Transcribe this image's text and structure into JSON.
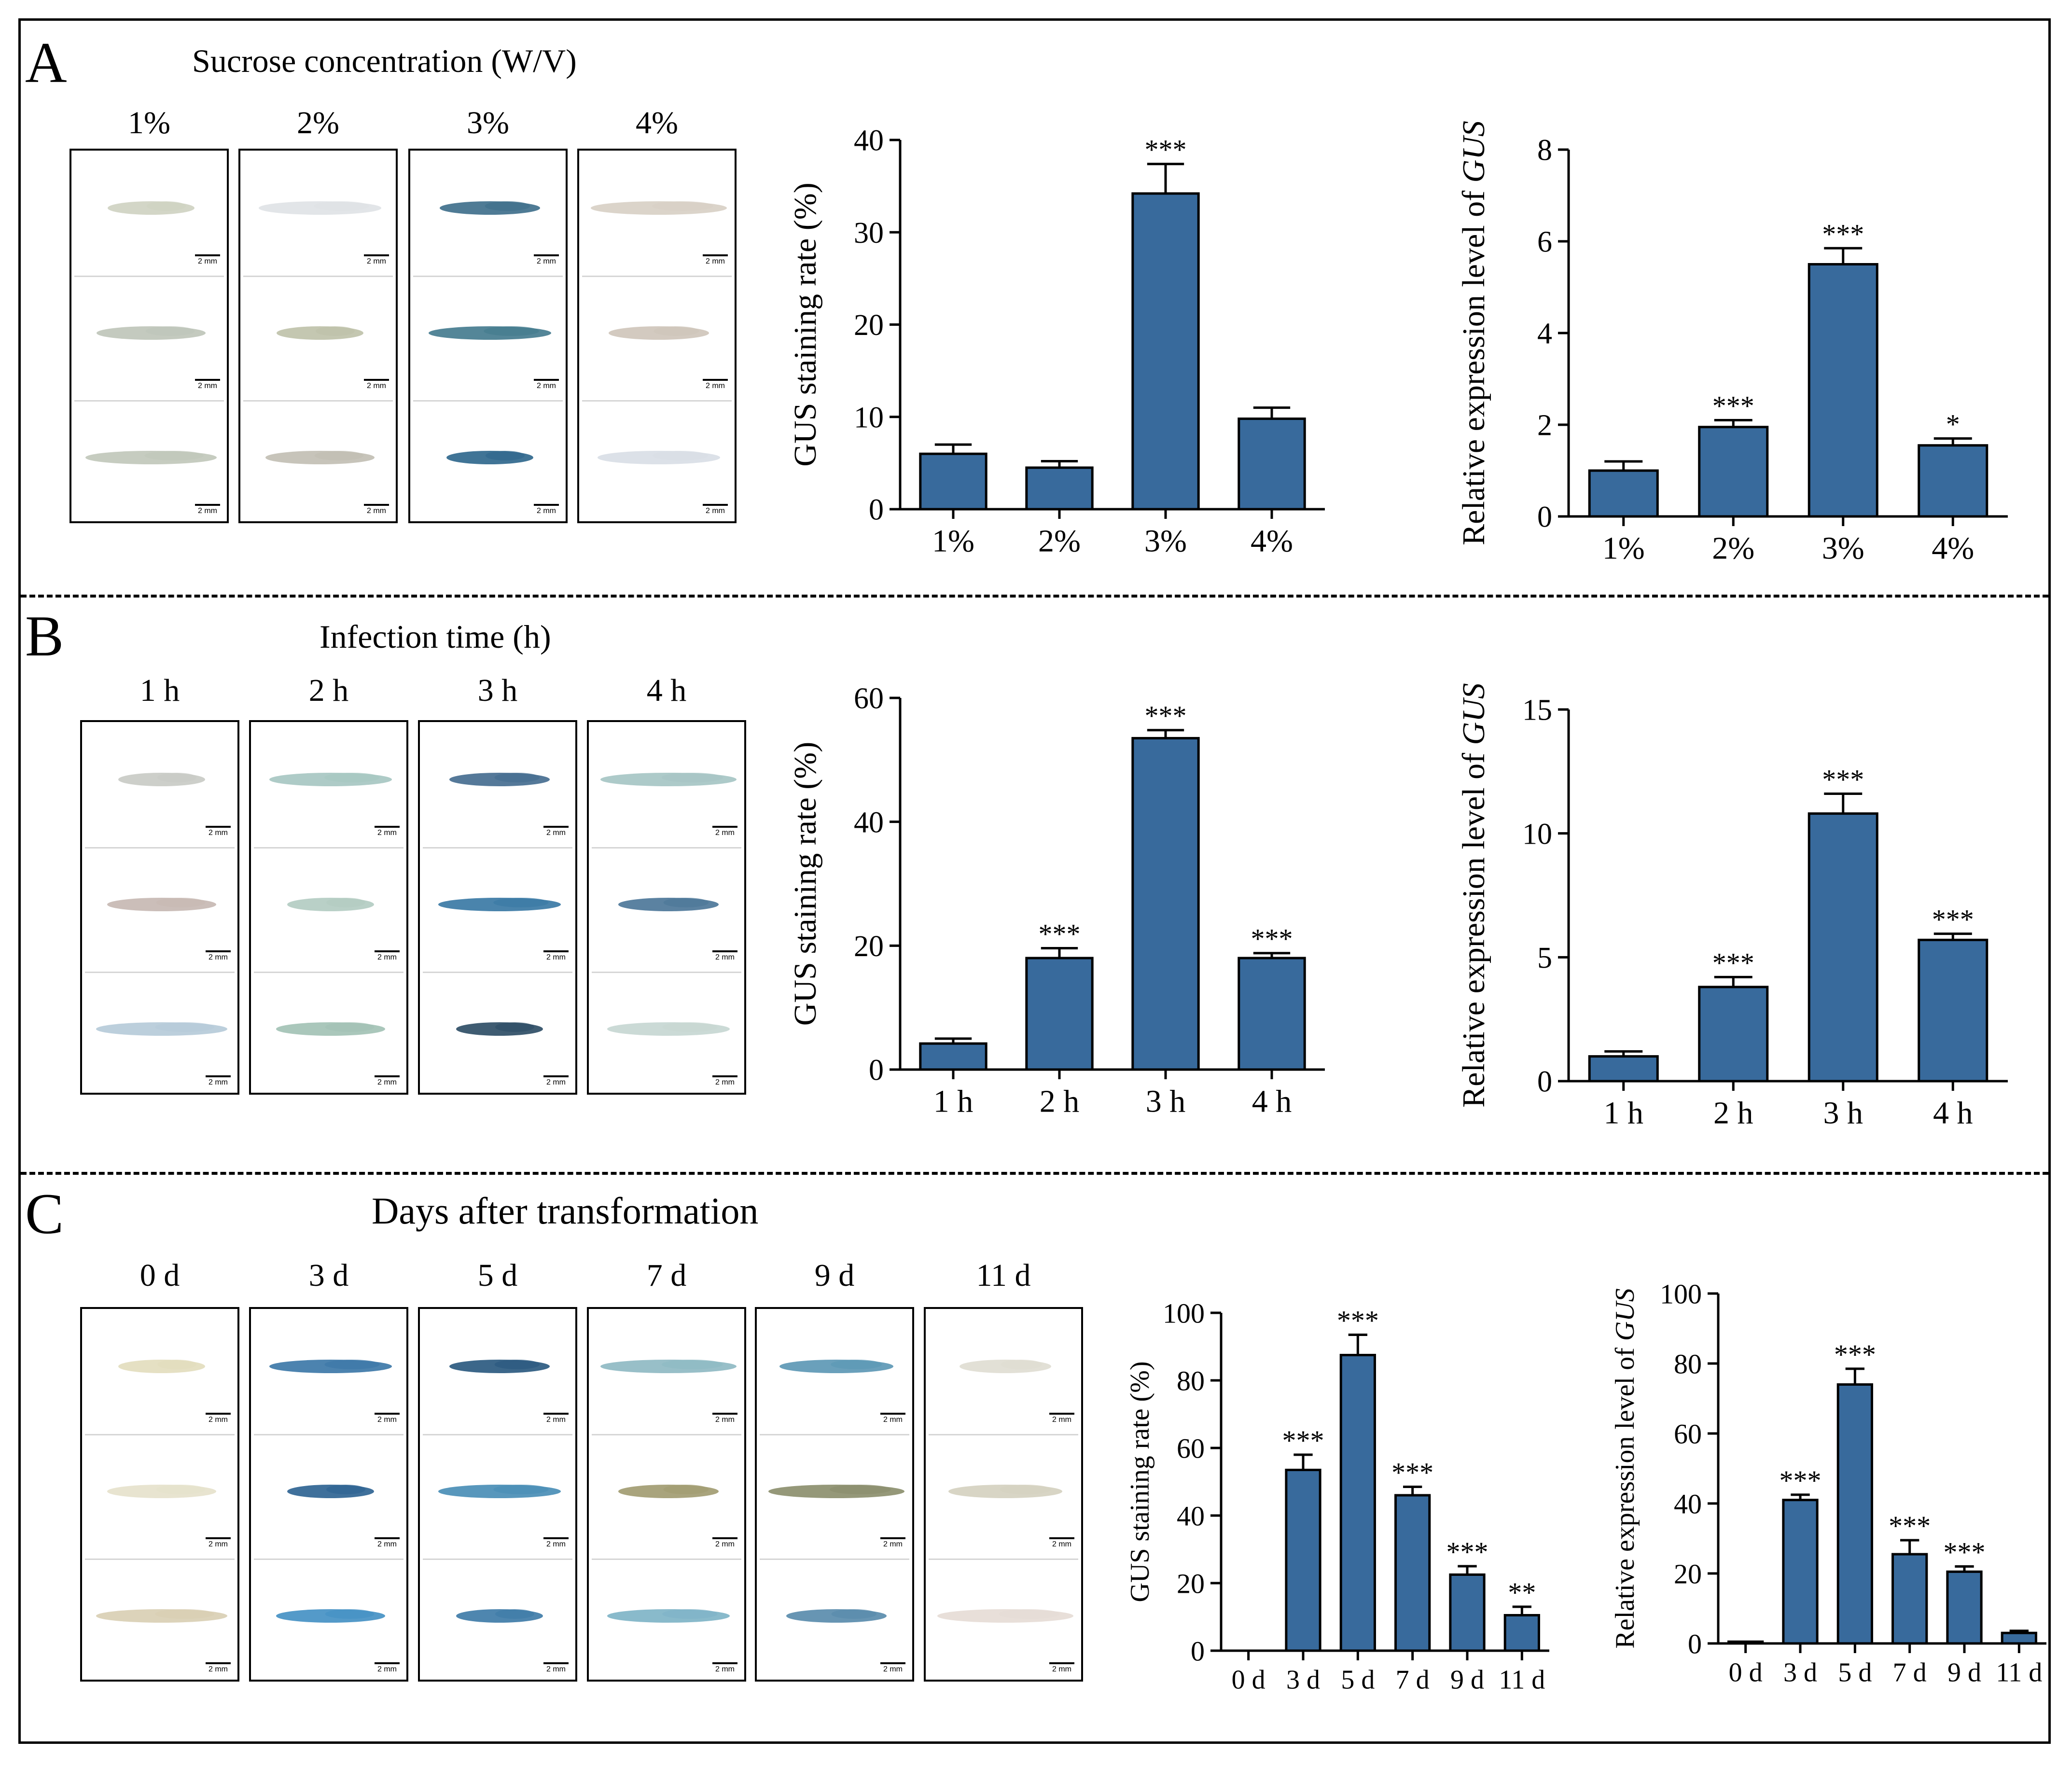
{
  "colors": {
    "bar": "#386a9c",
    "bar_edge": "#000000",
    "photo_border": "#000000"
  },
  "scale_bar_label": "2 mm",
  "panels": [
    {
      "letter": "A",
      "heading": "Sucrose concentration (W/V)",
      "photo_labels": [
        "1%",
        "2%",
        "3%",
        "4%"
      ],
      "tissue_colors": [
        [
          "#cfd3c2",
          "#bfc6ba",
          "#c1c8bb"
        ],
        [
          "#dfe3e6",
          "#bfc2aa",
          "#c2bfb4"
        ],
        [
          "#40708c",
          "#457c8f",
          "#30688d"
        ],
        [
          "#d8d0c6",
          "#cfc6bb",
          "#d9dee6"
        ]
      ]
    },
    {
      "letter": "B",
      "heading": "Infection time (h)",
      "photo_labels": [
        "1 h",
        "2 h",
        "3 h",
        "4 h"
      ],
      "tissue_colors": [
        [
          "#c9cbc6",
          "#c7b9b3",
          "#b6cbd9"
        ],
        [
          "#a7c7c2",
          "#b3ccc2",
          "#a3c2b5"
        ],
        [
          "#466e90",
          "#3b7aa5",
          "#2f4e66"
        ],
        [
          "#a6c5c4",
          "#4d7799",
          "#c7d7d2"
        ]
      ]
    },
    {
      "letter": "C",
      "heading": "Days after transformation",
      "photo_labels": [
        "0 d",
        "3 d",
        "5 d",
        "7 d",
        "9 d",
        "11 d"
      ],
      "tissue_colors": [
        [
          "#e3ddbe",
          "#e6e2cc",
          "#d9cfb4"
        ],
        [
          "#3d78a8",
          "#2f6493",
          "#4591c4"
        ],
        [
          "#2b5a80",
          "#4a8eb6",
          "#3f7ca8"
        ],
        [
          "#8fbac3",
          "#a29c72",
          "#7fb4c7"
        ],
        [
          "#5d98b5",
          "#8c8f6e",
          "#5a8cad"
        ],
        [
          "#dfddd2",
          "#d5d1c0",
          "#e6dcd6"
        ]
      ]
    }
  ],
  "chart_data": [
    {
      "type": "bar",
      "panel": "A",
      "title": "",
      "xlabel": "",
      "ylabel": "GUS staining rate (%)",
      "categories": [
        "1%",
        "2%",
        "3%",
        "4%"
      ],
      "values": [
        6,
        4.5,
        34.2,
        9.8
      ],
      "errors": [
        1,
        0.7,
        3.2,
        1.2
      ],
      "significance": [
        "",
        "",
        "***",
        ""
      ],
      "ylim": [
        0,
        40
      ],
      "yticks": [
        0,
        10,
        20,
        30,
        40
      ]
    },
    {
      "type": "bar",
      "panel": "A",
      "title": "",
      "xlabel": "",
      "ylabel": "Relative expression level of ",
      "ylabel_gene": "GUS",
      "categories": [
        "1%",
        "2%",
        "3%",
        "4%"
      ],
      "values": [
        1,
        1.95,
        5.5,
        1.55
      ],
      "errors": [
        0.2,
        0.15,
        0.35,
        0.15
      ],
      "significance": [
        "",
        "***",
        "***",
        "*"
      ],
      "ylim": [
        0,
        8
      ],
      "yticks": [
        0,
        2,
        4,
        6,
        8
      ]
    },
    {
      "type": "bar",
      "panel": "B",
      "title": "",
      "xlabel": "",
      "ylabel": "GUS staining rate (%)",
      "categories": [
        "1 h",
        "2 h",
        "3 h",
        "4 h"
      ],
      "values": [
        4.2,
        18,
        53.5,
        18
      ],
      "errors": [
        0.8,
        1.6,
        1.3,
        0.8
      ],
      "significance": [
        "",
        "***",
        "***",
        "***"
      ],
      "ylim": [
        0,
        60
      ],
      "yticks": [
        0,
        20,
        40,
        60
      ]
    },
    {
      "type": "bar",
      "panel": "B",
      "title": "",
      "xlabel": "",
      "ylabel": "Relative expression level of ",
      "ylabel_gene": "GUS",
      "categories": [
        "1 h",
        "2 h",
        "3 h",
        "4 h"
      ],
      "values": [
        1,
        3.8,
        10.8,
        5.7
      ],
      "errors": [
        0.2,
        0.4,
        0.8,
        0.25
      ],
      "significance": [
        "",
        "***",
        "***",
        "***"
      ],
      "ylim": [
        0,
        15
      ],
      "yticks": [
        0,
        5,
        10,
        15
      ]
    },
    {
      "type": "bar",
      "panel": "C",
      "title": "",
      "xlabel": "",
      "ylabel": "GUS staining rate (%)",
      "categories": [
        "0 d",
        "3 d",
        "5 d",
        "7 d",
        "9 d",
        "11 d"
      ],
      "values": [
        0,
        53.5,
        87.5,
        46,
        22.5,
        10.5
      ],
      "errors": [
        0,
        4.5,
        6,
        2.5,
        2.5,
        2.5
      ],
      "significance": [
        "",
        "***",
        "***",
        "***",
        "***",
        "**"
      ],
      "ylim": [
        0,
        100
      ],
      "yticks": [
        0,
        20,
        40,
        60,
        80,
        100
      ]
    },
    {
      "type": "bar",
      "panel": "C",
      "title": "",
      "xlabel": "",
      "ylabel": "Relative expression level of ",
      "ylabel_gene": "GUS",
      "categories": [
        "0 d",
        "3 d",
        "5 d",
        "7 d",
        "9 d",
        "11 d"
      ],
      "values": [
        0.5,
        41,
        74,
        25.5,
        20.5,
        3
      ],
      "errors": [
        0,
        1.5,
        4.5,
        4,
        1.5,
        0.6
      ],
      "significance": [
        "",
        "***",
        "***",
        "***",
        "***",
        ""
      ],
      "ylim": [
        0,
        100
      ],
      "yticks": [
        0,
        20,
        40,
        60,
        80,
        100
      ]
    }
  ]
}
